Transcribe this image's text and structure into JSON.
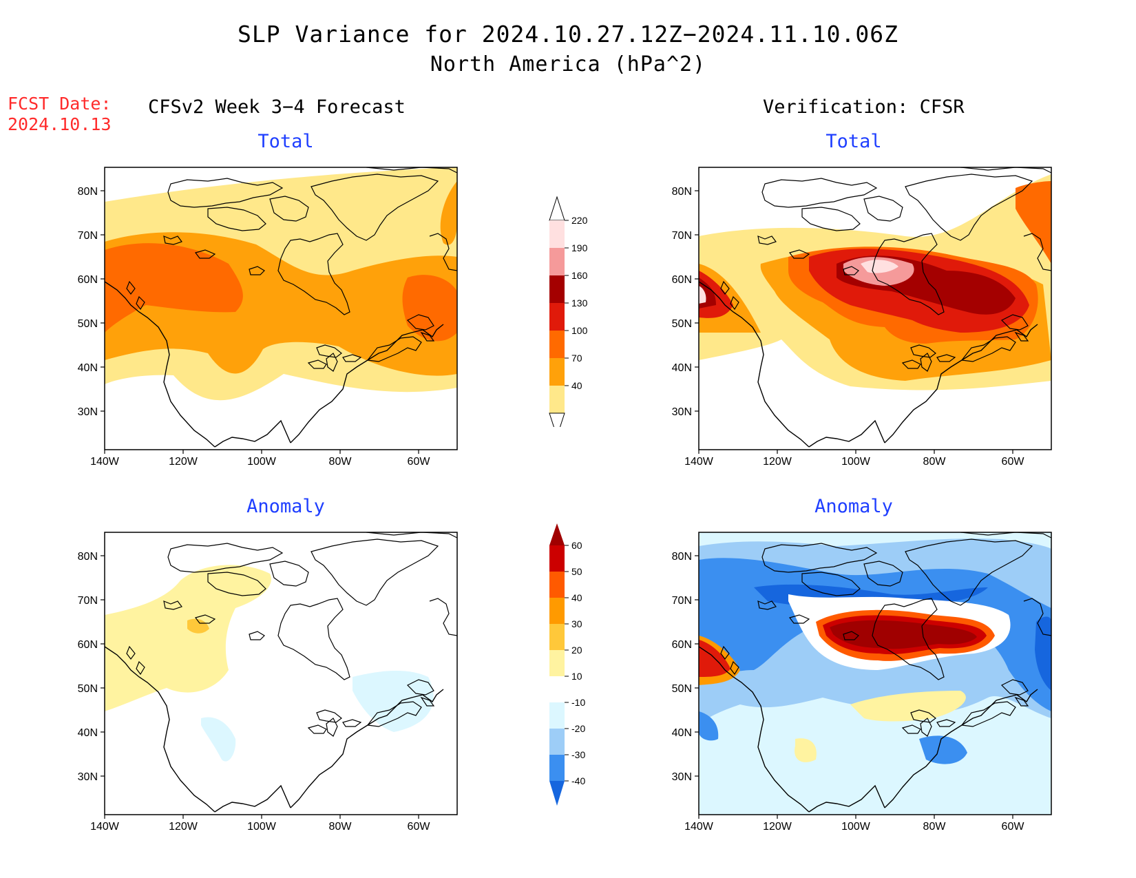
{
  "title": "SLP Variance for 2024.10.27.12Z−2024.11.10.06Z",
  "subtitle": "North America (hPa^2)",
  "fcst_date_label": "FCST Date:",
  "fcst_date_value": "2024.10.13",
  "left_column_title": "CFSv2 Week 3−4 Forecast",
  "right_column_title": "Verification: CFSR",
  "panels": {
    "fcst_total": "Total",
    "fcst_anomaly": "Anomaly",
    "verif_total": "Total",
    "verif_anomaly": "Anomaly"
  },
  "axes": {
    "lat_labels": [
      "80N",
      "70N",
      "60N",
      "50N",
      "40N",
      "30N"
    ],
    "lon_labels": [
      "140W",
      "120W",
      "100W",
      "80W",
      "60W"
    ]
  },
  "colorbars": {
    "total": {
      "levels": [
        "40",
        "70",
        "100",
        "130",
        "160",
        "190",
        "220"
      ],
      "colors": [
        "#ffe88a",
        "#ffa10a",
        "#ff6a00",
        "#e01a0a",
        "#a40000",
        "#f59a9a",
        "#ffe0e0"
      ]
    },
    "anomaly": {
      "levels": [
        "-40",
        "-30",
        "-20",
        "-10",
        "10",
        "20",
        "30",
        "40",
        "50",
        "60"
      ],
      "colors": [
        "#1666de",
        "#3b8ff0",
        "#9dcdf7",
        "#dcf7ff",
        "#ffffff",
        "#fff3a0",
        "#ffc83a",
        "#ff9a00",
        "#ff5a00",
        "#cc0000",
        "#a00000"
      ]
    }
  }
}
